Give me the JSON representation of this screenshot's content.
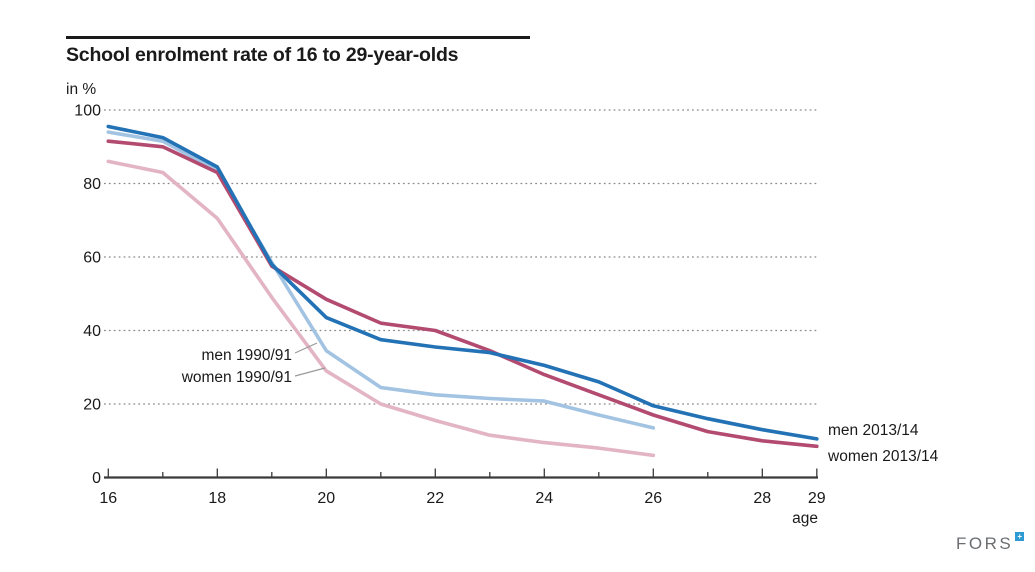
{
  "header": {
    "title": "School enrolment rate of 16 to 29-year-olds"
  },
  "chart_data": {
    "type": "line",
    "title": "School enrolment rate of 16 to 29-year-olds",
    "ylabel": "in %",
    "xlabel": "age",
    "xlim": [
      16,
      29
    ],
    "ylim": [
      0,
      100
    ],
    "x_tick_labels": [
      16,
      18,
      20,
      22,
      24,
      26,
      28,
      29
    ],
    "x_minor_ticks": [
      17,
      19,
      21,
      23,
      25,
      27
    ],
    "y_tick_labels": [
      0,
      20,
      40,
      60,
      80,
      100
    ],
    "y_gridlines": [
      20,
      40,
      60,
      80,
      100
    ],
    "grid": "horizontal dotted gridlines, no vertical gridlines",
    "legend_position": "direct labels: 1990/91 series labelled inside plot with callout lines, 2013/14 series labelled at right line ends",
    "series": [
      {
        "name": "men 2013/14",
        "color": "#2272b5",
        "x": [
          16,
          17,
          18,
          19,
          20,
          21,
          22,
          23,
          24,
          25,
          26,
          27,
          28,
          29
        ],
        "values": [
          95.5,
          92.5,
          84.5,
          58,
          43.5,
          37.5,
          35.5,
          34,
          30.5,
          26,
          19.5,
          16,
          13,
          10.5
        ]
      },
      {
        "name": "women 2013/14",
        "color": "#b24b6f",
        "x": [
          16,
          17,
          18,
          19,
          20,
          21,
          22,
          23,
          24,
          25,
          26,
          27,
          28,
          29
        ],
        "values": [
          91.5,
          90,
          83,
          57.5,
          48.5,
          42,
          40,
          34.5,
          28,
          22.5,
          17,
          12.5,
          10,
          8.5
        ]
      },
      {
        "name": "men 1990/91",
        "color": "#a3c3e2",
        "x": [
          16,
          17,
          18,
          19,
          20,
          21,
          22,
          23,
          24,
          25,
          26
        ],
        "values": [
          94,
          91.5,
          83.5,
          58.5,
          34.5,
          24.5,
          22.5,
          21.5,
          20.8,
          17,
          13.5
        ]
      },
      {
        "name": "women 1990/91",
        "color": "#e2b4c4",
        "x": [
          16,
          17,
          18,
          19,
          20,
          21,
          22,
          23,
          24,
          25,
          26
        ],
        "values": [
          86,
          83,
          70.5,
          49,
          29,
          20,
          15.5,
          11.5,
          9.5,
          8,
          6
        ]
      }
    ]
  },
  "logo": {
    "text": "FORS"
  }
}
